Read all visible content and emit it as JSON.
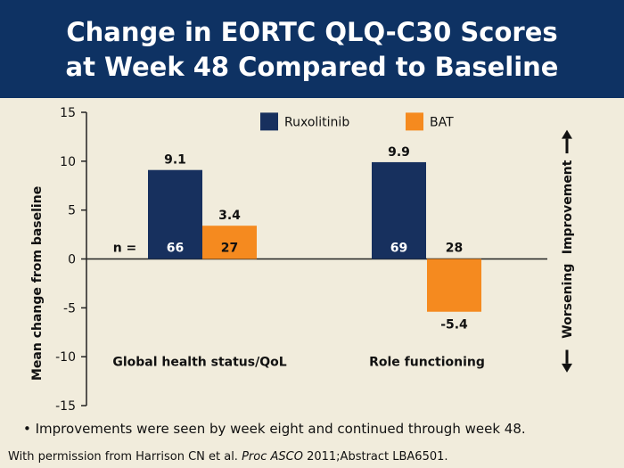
{
  "title": {
    "line1": "Change in EORTC QLQ-C30 Scores",
    "line2": "at Week 48 Compared to Baseline"
  },
  "colors": {
    "title_bg": "#0e3263",
    "background": "#f1ecdc",
    "ruxolitinib": "#17305e",
    "bat": "#f58a1f",
    "text": "#111111"
  },
  "chart_data": {
    "type": "bar",
    "categories": [
      "Global health status/QoL",
      "Role functioning"
    ],
    "series": [
      {
        "name": "Ruxolitinib",
        "values": [
          9.1,
          9.9
        ],
        "n": [
          "66",
          "69"
        ],
        "labels": [
          "9.1",
          "9.9"
        ]
      },
      {
        "name": "BAT",
        "values": [
          3.4,
          -5.4
        ],
        "n": [
          "27",
          "28"
        ],
        "labels": [
          "3.4",
          "-5.4"
        ]
      }
    ],
    "ylabel": "Mean change from baseline",
    "ylim": [
      -15,
      15
    ],
    "yticks": [
      15,
      10,
      5,
      0,
      -5,
      -10,
      -15
    ],
    "n_label": "n =",
    "direction_up": "Improvement",
    "direction_down": "Worsening",
    "legend_position": "top",
    "grid": false
  },
  "footer": {
    "bullet": "• Improvements were seen by week eight and continued through week 48.",
    "source_pre": "With permission from Harrison CN et al. ",
    "source_italic": "Proc ASCO",
    "source_post": " 2011;Abstract LBA6501."
  }
}
